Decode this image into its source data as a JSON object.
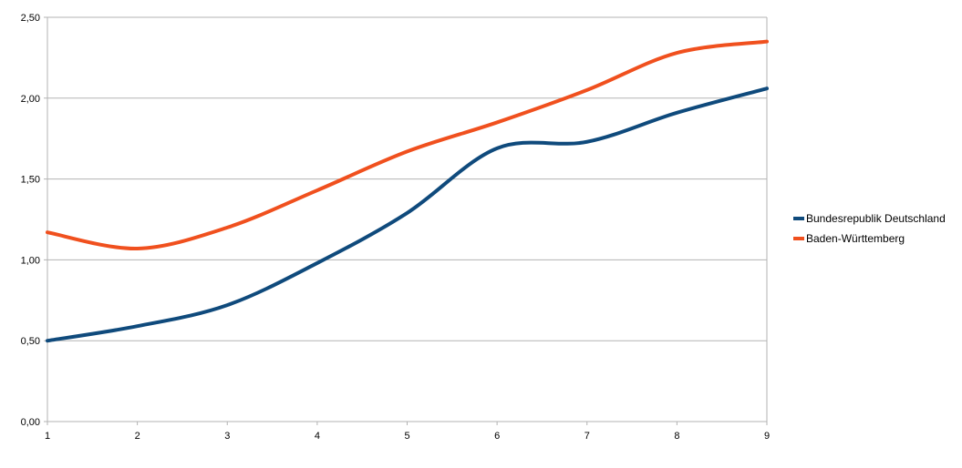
{
  "chart_data": {
    "type": "line",
    "x": [
      1,
      2,
      3,
      4,
      5,
      6,
      7,
      8,
      9
    ],
    "xlim": [
      1,
      9
    ],
    "ylim": [
      0,
      2.5
    ],
    "y_ticks": [
      "0,00",
      "0,50",
      "1,00",
      "1,50",
      "2,00",
      "2,50"
    ],
    "x_ticks": [
      "1",
      "2",
      "3",
      "4",
      "5",
      "6",
      "7",
      "8",
      "9"
    ],
    "grid": "horizontal",
    "smooth": true,
    "legend_position": "right",
    "series": [
      {
        "name": "Bundesrepublik Deutschland",
        "color": "#0f4a7c",
        "values": [
          0.5,
          0.59,
          0.72,
          0.98,
          1.29,
          1.69,
          1.73,
          1.91,
          2.06
        ]
      },
      {
        "name": "Baden-Württemberg",
        "color": "#f0501e",
        "values": [
          1.17,
          1.07,
          1.2,
          1.43,
          1.67,
          1.85,
          2.05,
          2.28,
          2.35
        ]
      }
    ]
  }
}
